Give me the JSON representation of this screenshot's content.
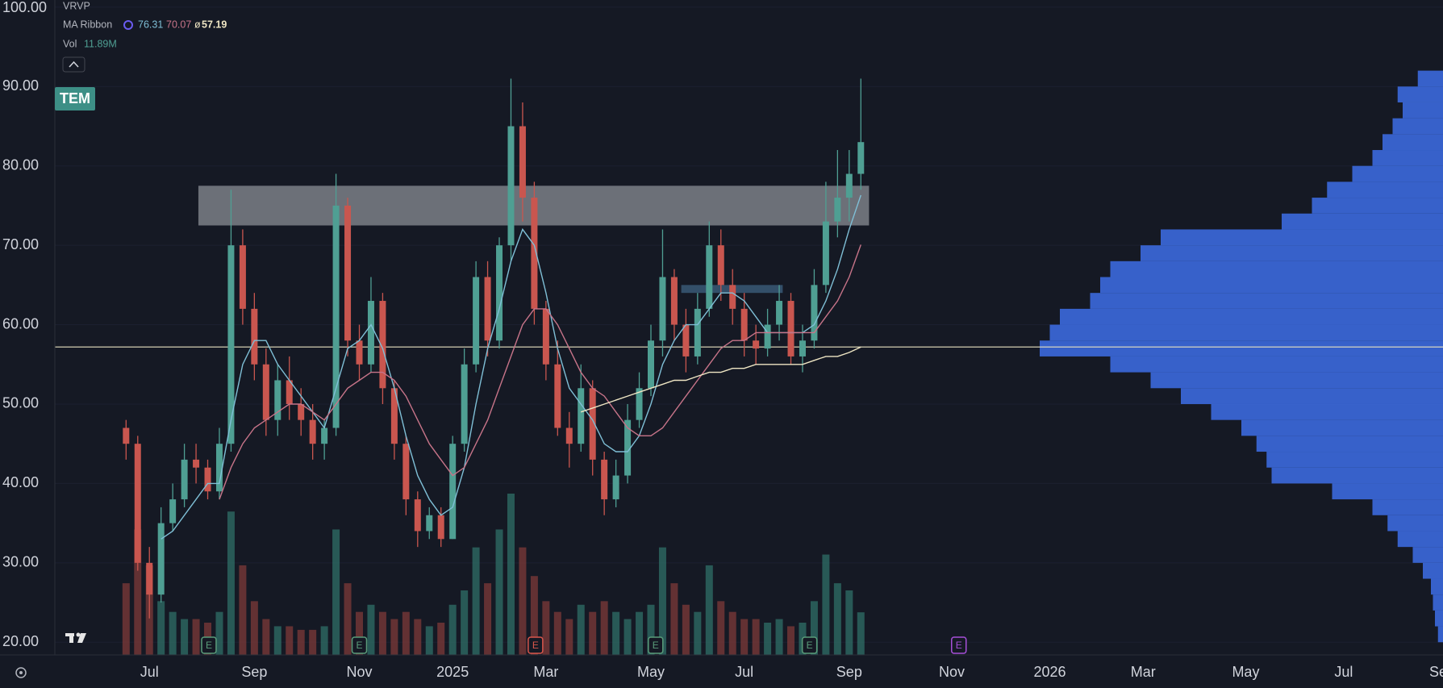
{
  "chart_data": {
    "type": "candlestick",
    "symbol": "TEM",
    "indicators": {
      "vrvp": "VRVP",
      "ma_ribbon": "MA Ribbon",
      "ma_separator": "ø",
      "vol": "Vol",
      "vol_value_label": "11.89M"
    },
    "categories": [
      null,
      null,
      "Jul",
      null,
      null,
      null,
      null,
      null,
      null,
      null,
      null,
      "Sep",
      null,
      null,
      null,
      null,
      null,
      null,
      null,
      null,
      "Nov",
      null,
      null,
      null,
      null,
      null,
      null,
      null,
      "2025",
      null,
      null,
      null,
      null,
      null,
      null,
      null,
      "Mar",
      null,
      null,
      null,
      null,
      null,
      null,
      null,
      null,
      "May",
      null,
      null,
      null,
      null,
      null,
      null,
      null,
      "Jul",
      null,
      null,
      null,
      null,
      null,
      null,
      null,
      null,
      "Sep",
      null
    ],
    "future_categories": [
      "Nov",
      "2026",
      "Mar",
      "May",
      "Jul",
      "Se"
    ],
    "open": [
      47,
      45,
      30,
      26,
      35,
      38,
      43,
      42,
      39,
      45,
      70,
      62,
      55,
      48,
      53,
      50,
      48,
      45,
      47,
      75,
      58,
      55,
      63,
      52,
      45,
      38,
      34,
      36,
      33,
      45,
      55,
      66,
      58,
      70,
      85,
      76,
      62,
      55,
      47,
      45,
      52,
      43,
      38,
      41,
      48,
      52,
      58,
      66,
      60,
      56,
      62,
      70,
      65,
      62,
      58,
      57,
      60,
      63,
      56,
      58,
      65,
      73,
      76,
      79
    ],
    "high": [
      48,
      46,
      32,
      37,
      40,
      45,
      45,
      43,
      47,
      77,
      72,
      64,
      57,
      55,
      56,
      52,
      50,
      48,
      79,
      76,
      60,
      66,
      64,
      53,
      46,
      39,
      37,
      37,
      46,
      57,
      68,
      68,
      71,
      91,
      88,
      78,
      63,
      58,
      49,
      55,
      53,
      44,
      43,
      50,
      54,
      60,
      72,
      67,
      62,
      64,
      73,
      72,
      67,
      64,
      60,
      62,
      65,
      64,
      60,
      67,
      78,
      82,
      82,
      91
    ],
    "low": [
      43,
      29,
      23,
      25,
      34,
      37,
      40,
      38,
      38,
      44,
      60,
      53,
      46,
      46,
      48,
      46,
      43,
      43,
      46,
      56,
      53,
      54,
      50,
      43,
      36,
      32,
      33,
      32,
      33,
      44,
      54,
      56,
      57,
      68,
      73,
      60,
      53,
      46,
      42,
      44,
      41,
      36,
      37,
      40,
      47,
      51,
      56,
      58,
      54,
      55,
      61,
      63,
      60,
      56,
      55,
      56,
      58,
      55,
      54,
      57,
      64,
      71,
      73,
      77
    ],
    "close": [
      45,
      30,
      26,
      35,
      38,
      43,
      42,
      39,
      45,
      70,
      62,
      55,
      48,
      53,
      50,
      48,
      45,
      47,
      75,
      58,
      55,
      63,
      52,
      45,
      38,
      34,
      36,
      33,
      45,
      55,
      66,
      58,
      70,
      85,
      76,
      62,
      55,
      47,
      45,
      52,
      43,
      38,
      41,
      48,
      52,
      58,
      66,
      60,
      56,
      62,
      70,
      65,
      62,
      58,
      57,
      60,
      63,
      56,
      58,
      65,
      73,
      76,
      79,
      83
    ],
    "colors": {
      "up": "#4f9f93",
      "down": "#c9564f"
    },
    "ma_lines": [
      {
        "color": "#7fbfd6",
        "values": [
          null,
          null,
          null,
          33,
          34,
          36,
          38,
          40,
          40,
          48,
          55,
          58,
          58,
          55,
          53,
          51,
          49,
          47,
          52,
          57,
          58,
          60,
          57,
          52,
          46,
          41,
          38,
          36,
          37,
          42,
          50,
          57,
          62,
          68,
          72,
          70,
          64,
          57,
          52,
          50,
          48,
          45,
          44,
          44,
          46,
          50,
          55,
          58,
          60,
          60,
          62,
          64,
          64,
          63,
          61,
          59,
          59,
          59,
          59,
          60,
          63,
          67,
          72,
          76.31
        ]
      },
      {
        "color": "#c77489",
        "values": [
          null,
          null,
          null,
          null,
          null,
          null,
          null,
          null,
          38,
          42,
          45,
          47,
          48,
          49,
          50,
          50,
          49,
          48,
          50,
          52,
          53,
          54,
          54,
          53,
          51,
          48,
          45,
          43,
          41,
          42,
          45,
          48,
          52,
          56,
          60,
          62,
          62,
          60,
          57,
          54,
          52,
          51,
          49,
          47,
          46,
          46,
          47,
          49,
          51,
          53,
          55,
          57,
          58,
          58,
          59,
          59,
          59,
          59,
          59,
          59,
          61,
          63,
          66,
          70.07
        ]
      },
      {
        "color": "#efe6c4",
        "values": [
          null,
          null,
          null,
          null,
          null,
          null,
          null,
          null,
          null,
          null,
          null,
          null,
          null,
          null,
          null,
          null,
          null,
          null,
          null,
          null,
          null,
          null,
          null,
          null,
          null,
          null,
          null,
          null,
          null,
          null,
          null,
          null,
          null,
          null,
          null,
          null,
          null,
          null,
          null,
          49,
          49.5,
          50,
          50.5,
          51,
          51.5,
          52,
          52.5,
          53,
          53,
          53.5,
          54,
          54,
          54.5,
          54.5,
          55,
          55,
          55,
          55,
          55,
          55.5,
          56,
          56,
          56.5,
          57.19
        ]
      }
    ],
    "volume": {
      "up_color": "#2f6f67",
      "down_color": "#7d3a38",
      "values": [
        20,
        35,
        25,
        15,
        12,
        10,
        10,
        9,
        12,
        40,
        25,
        15,
        10,
        8,
        8,
        7,
        7,
        8,
        35,
        20,
        12,
        14,
        12,
        10,
        12,
        10,
        8,
        9,
        14,
        18,
        30,
        20,
        35,
        45,
        30,
        22,
        15,
        12,
        10,
        14,
        12,
        15,
        12,
        10,
        12,
        14,
        30,
        20,
        14,
        12,
        25,
        15,
        12,
        10,
        10,
        9,
        10,
        8,
        9,
        15,
        28,
        20,
        18,
        11.89
      ]
    },
    "volume_profile": {
      "color": "#3d6fe8",
      "bins": [
        20,
        22,
        24,
        26,
        28,
        30,
        32,
        34,
        36,
        38,
        40,
        42,
        44,
        46,
        48,
        50,
        52,
        54,
        56,
        58,
        60,
        62,
        64,
        66,
        68,
        70,
        72,
        74,
        76,
        78,
        80,
        82,
        84,
        86,
        88,
        90,
        92
      ],
      "values": [
        5,
        8,
        10,
        12,
        20,
        30,
        45,
        55,
        70,
        110,
        170,
        175,
        185,
        200,
        230,
        260,
        290,
        330,
        400,
        390,
        380,
        350,
        340,
        330,
        300,
        280,
        160,
        130,
        115,
        90,
        70,
        60,
        50,
        40,
        45,
        25
      ]
    },
    "zones": [
      {
        "low": 72.5,
        "high": 77.5,
        "color": "#8a8d94"
      },
      {
        "low": 64,
        "high": 65,
        "color": "#3b5c7a"
      }
    ],
    "earnings": {
      "labels": [
        "E",
        "E",
        "E",
        "E",
        "E",
        "E"
      ],
      "colors": [
        "#5a9c7a",
        "#5a9c7a",
        "#d9574c",
        "#5a9c7a",
        "#5a9c7a",
        "#a64fd8"
      ]
    },
    "ylim": [
      18.4,
      100.9
    ],
    "yticks": [
      {
        "value": 20,
        "label": "20.00"
      },
      {
        "value": 30,
        "label": "30.00"
      },
      {
        "value": 40,
        "label": "40.00"
      },
      {
        "value": 50,
        "label": "50.00"
      },
      {
        "value": 60,
        "label": "60.00"
      },
      {
        "value": 70,
        "label": "70.00"
      },
      {
        "value": 80,
        "label": "80.00"
      },
      {
        "value": 90,
        "label": "90.00"
      },
      {
        "value": 100,
        "label": "100.00"
      }
    ]
  }
}
